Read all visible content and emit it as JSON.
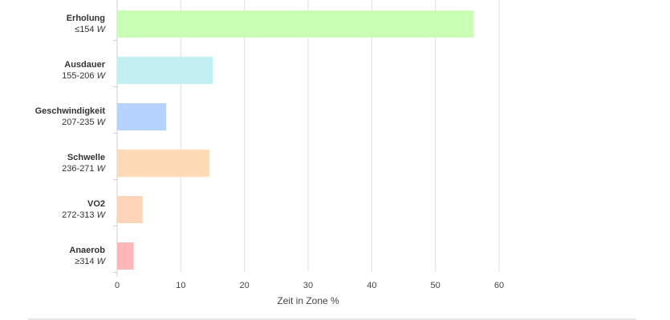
{
  "chart_data": {
    "type": "bar",
    "orientation": "horizontal",
    "xlabel": "Zeit in Zone %",
    "xlim": [
      0,
      60
    ],
    "xticks": [
      0,
      10,
      20,
      30,
      40,
      50,
      60
    ],
    "grid": true,
    "unit_symbol": "W",
    "categories": [
      {
        "name": "Erholung",
        "range": "≤154",
        "value": 56,
        "color": "#c8ffb4"
      },
      {
        "name": "Ausdauer",
        "range": "155-206",
        "value": 15,
        "color": "#c2f0f2"
      },
      {
        "name": "Geschwindigkeit",
        "range": "207-235",
        "value": 7.7,
        "color": "#b6d3ff"
      },
      {
        "name": "Schwelle",
        "range": "236-271",
        "value": 14.5,
        "color": "#ffdab6"
      },
      {
        "name": "VO2",
        "range": "272-313",
        "value": 4,
        "color": "#ffd4b8"
      },
      {
        "name": "Anaerob",
        "range": "≥314",
        "value": 2.6,
        "color": "#ffb6b6"
      }
    ]
  }
}
